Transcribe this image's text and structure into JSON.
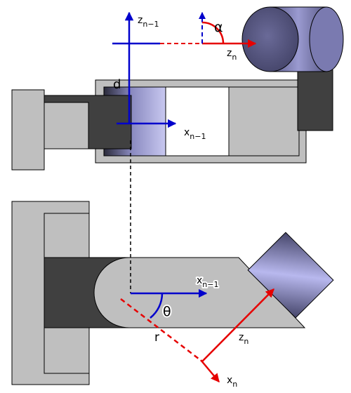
{
  "colors": {
    "frame_gray": "#bfbfbf",
    "dark_gray": "#404040",
    "red_axis": "#e60000",
    "blue_axis": "#0000cc",
    "cylinder_blue": "#7878b0"
  },
  "labels": {
    "z_prev": "z",
    "z_prev_sub": "n−1",
    "alpha": "α",
    "z_n_top": "z",
    "z_n_top_sub": "n",
    "d": "d",
    "x_prev_top": "x",
    "x_prev_top_sub": "n−1",
    "x_prev_bottom": "x",
    "x_prev_bottom_sub": "n−1",
    "theta": "θ",
    "r": "r",
    "z_n_bottom": "z",
    "z_n_bottom_sub": "n",
    "x_n": "x",
    "x_n_sub": "n"
  }
}
